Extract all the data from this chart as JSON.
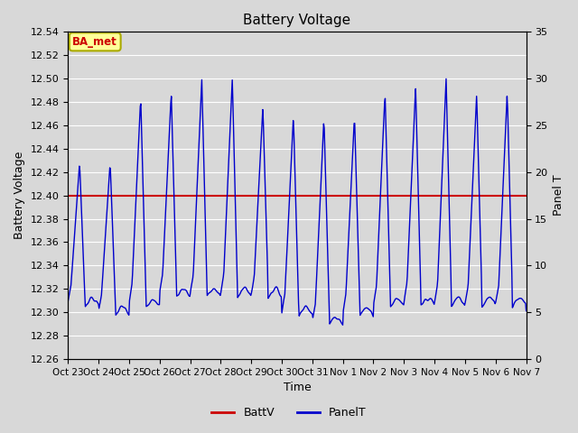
{
  "title": "Battery Voltage",
  "xlabel": "Time",
  "ylabel_left": "Battery Voltage",
  "ylabel_right": "Panel T",
  "ylim_left": [
    12.26,
    12.54
  ],
  "ylim_right": [
    0,
    35
  ],
  "yticks_left": [
    12.26,
    12.28,
    12.3,
    12.32,
    12.34,
    12.36,
    12.38,
    12.4,
    12.42,
    12.44,
    12.46,
    12.48,
    12.5,
    12.52,
    12.54
  ],
  "yticks_right": [
    0,
    5,
    10,
    15,
    20,
    25,
    30,
    35
  ],
  "xtick_labels": [
    "Oct 23",
    "Oct 24",
    "Oct 25",
    "Oct 26",
    "Oct 27",
    "Oct 28",
    "Oct 29",
    "Oct 30",
    "Oct 31",
    "Nov 1",
    "Nov 2",
    "Nov 3",
    "Nov 4",
    "Nov 5",
    "Nov 6",
    "Nov 7"
  ],
  "battv_value": 12.4,
  "battv_color": "#cc0000",
  "panelt_color": "#0000cc",
  "background_color": "#d8d8d8",
  "grid_color": "#ffffff",
  "annotation_text": "BA_met",
  "annotation_bg": "#ffff99",
  "annotation_border": "#aaaa00",
  "annotation_text_color": "#cc0000",
  "legend_battv": "BattV",
  "legend_panelt": "PanelT"
}
